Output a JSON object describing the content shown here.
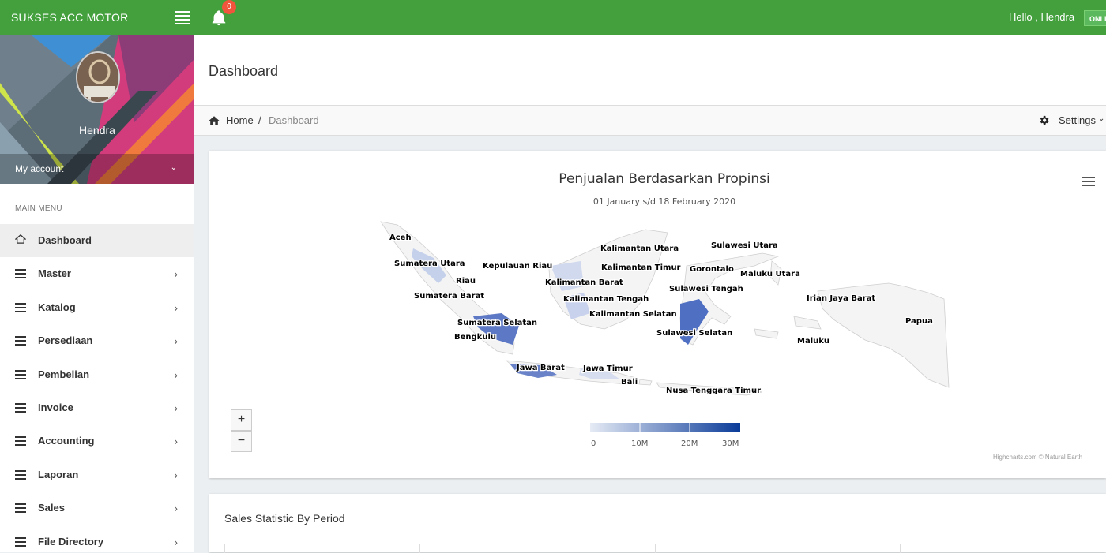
{
  "topbar": {
    "brand": "SUKSES ACC MOTOR",
    "notification_count": "0",
    "greeting": "Hello , Hendra",
    "status": "ONLI",
    "color": "#43a03d"
  },
  "sidebar": {
    "username": "Hendra",
    "my_account": "My account",
    "menu_header": "MAIN MENU",
    "items": [
      {
        "label": "Dashboard",
        "icon": "home-icon"
      },
      {
        "label": "Master",
        "icon": "list-icon"
      },
      {
        "label": "Katalog",
        "icon": "list-icon"
      },
      {
        "label": "Persediaan",
        "icon": "list-icon"
      },
      {
        "label": "Pembelian",
        "icon": "list-icon"
      },
      {
        "label": "Invoice",
        "icon": "list-icon"
      },
      {
        "label": "Accounting",
        "icon": "list-icon"
      },
      {
        "label": "Laporan",
        "icon": "list-icon"
      },
      {
        "label": "Sales",
        "icon": "list-icon"
      },
      {
        "label": "File Directory",
        "icon": "list-icon"
      }
    ]
  },
  "header": {
    "title": "Dashboard"
  },
  "breadcrumb": {
    "home": "Home",
    "separator": "/",
    "current": "Dashboard",
    "settings": "Settings"
  },
  "map_chart": {
    "title": "Penjualan Berdasarkan Propinsi",
    "subtitle": "01 January s/d 18 February 2020",
    "zoom_in": "+",
    "zoom_out": "−",
    "credits": "Highcharts.com © Natural Earth",
    "legend_ticks": [
      "0",
      "10M",
      "20M",
      "30M"
    ],
    "legend_colors": [
      "#e6ebf5",
      "#0a3b99"
    ],
    "provinces": [
      "Aceh",
      "Sumatera Utara",
      "Riau",
      "Sumatera Barat",
      "Sumatera Selatan",
      "Bengkulu",
      "Kepulauan Riau",
      "Kalimantan Barat",
      "Kalimantan Tengah",
      "Kalimantan Selatan",
      "Kalimantan Utara",
      "Kalimantan Timur",
      "Sulawesi Utara",
      "Gorontalo",
      "Sulawesi Tengah",
      "Sulawesi Selatan",
      "Maluku Utara",
      "Irian Jaya Barat",
      "Papua",
      "Maluku",
      "Jawa Barat",
      "Jawa Timur",
      "Bali",
      "Nusa Tenggara Timur"
    ]
  },
  "sales": {
    "title": "Sales Statistic By Period"
  }
}
